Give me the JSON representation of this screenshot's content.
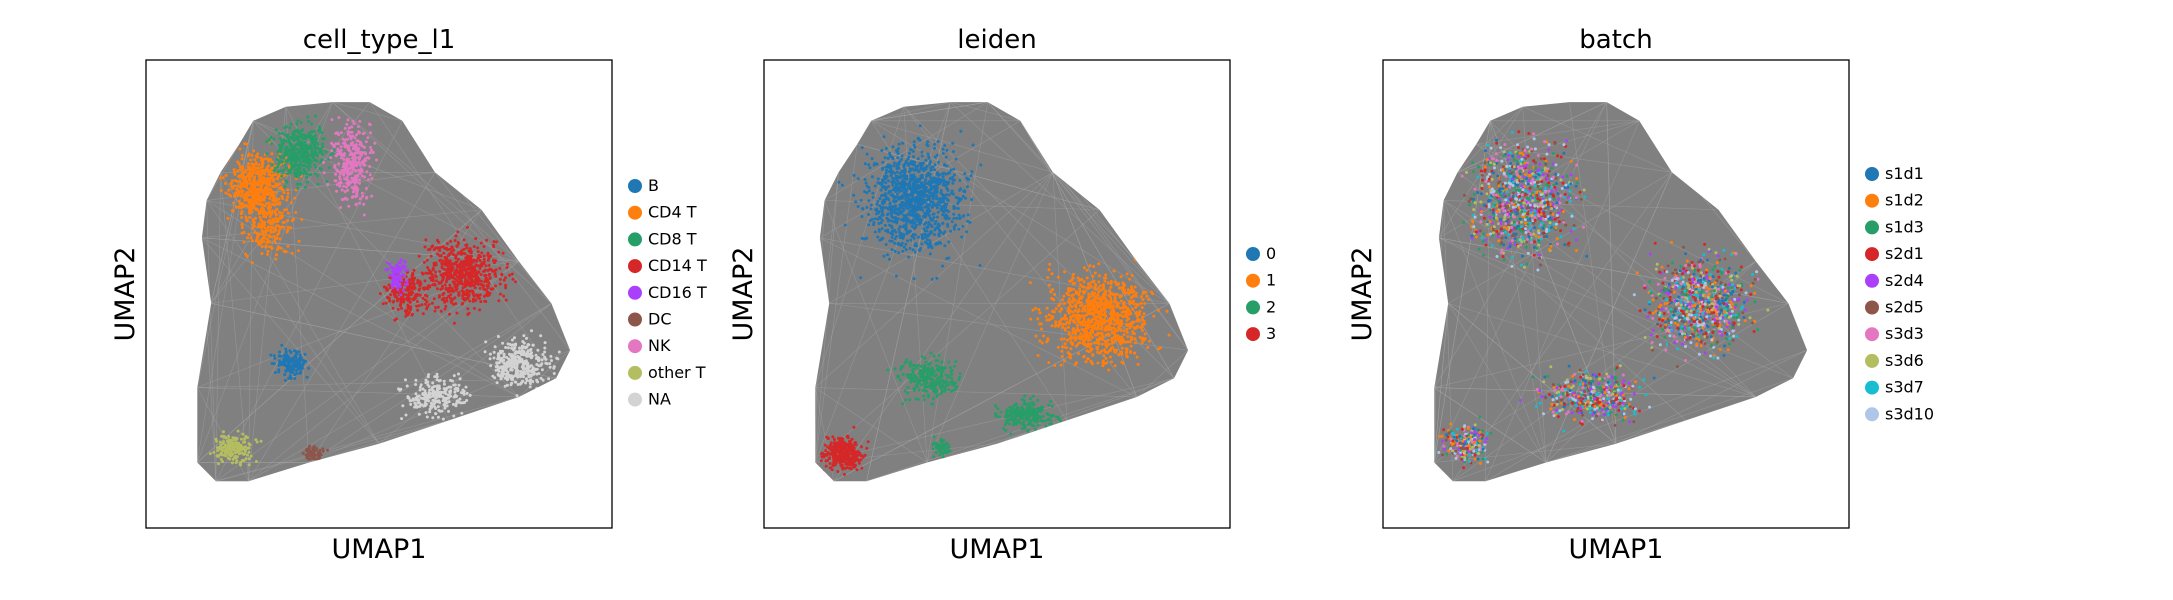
{
  "figure": {
    "background": "#ffffff",
    "edge_color": "#808080",
    "frame_color": "#000000"
  },
  "chart_data": [
    {
      "type": "scatter",
      "title": "cell_type_l1",
      "xlabel": "UMAP1",
      "ylabel": "UMAP2",
      "legend": "right",
      "categories": [
        "B",
        "CD4 T",
        "CD8 T",
        "CD14 T",
        "CD16 T",
        "DC",
        "NK",
        "other T",
        "NA"
      ],
      "colors": [
        "#1f77b4",
        "#ff7f0e",
        "#279e68",
        "#d62728",
        "#aa40fc",
        "#8c564b",
        "#e377c2",
        "#b5bd61",
        "#d3d3d3"
      ]
    },
    {
      "type": "scatter",
      "title": "leiden",
      "xlabel": "UMAP1",
      "ylabel": "UMAP2",
      "legend": "right",
      "categories": [
        "0",
        "1",
        "2",
        "3"
      ],
      "colors": [
        "#1f77b4",
        "#ff7f0e",
        "#279e68",
        "#d62728"
      ]
    },
    {
      "type": "scatter",
      "title": "batch",
      "xlabel": "UMAP1",
      "ylabel": "UMAP2",
      "legend": "right",
      "categories": [
        "s1d1",
        "s1d2",
        "s1d3",
        "s2d1",
        "s2d4",
        "s2d5",
        "s3d3",
        "s3d6",
        "s3d7",
        "s3d10"
      ],
      "colors": [
        "#1f77b4",
        "#ff7f0e",
        "#279e68",
        "#d62728",
        "#aa40fc",
        "#8c564b",
        "#e377c2",
        "#b5bd61",
        "#17becf",
        "#aec7e8"
      ]
    }
  ]
}
